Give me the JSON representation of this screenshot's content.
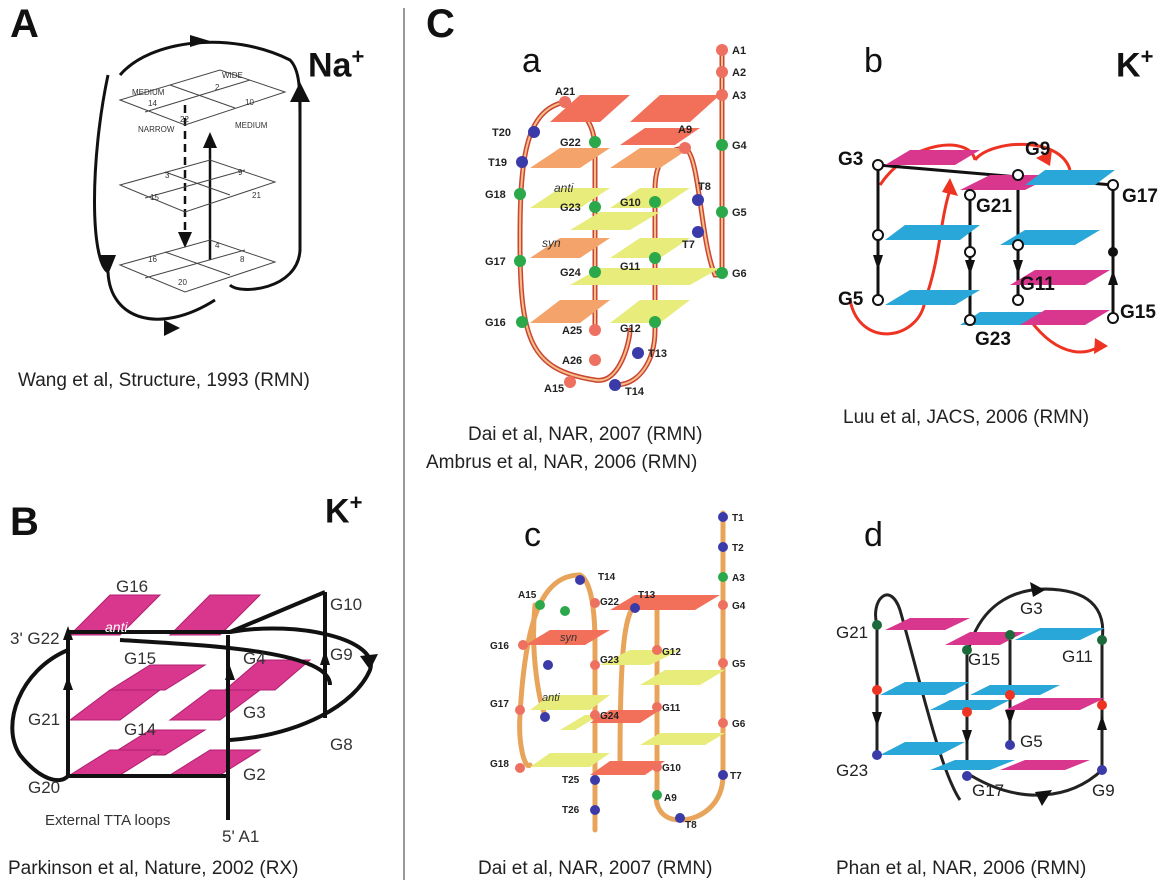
{
  "panels": {
    "A": {
      "letter": "A",
      "ion": "Na",
      "ion_charge": "+",
      "citation": "Wang et al, Structure, 1993 (RMN)",
      "groove_labels": [
        "WIDE",
        "MEDIUM",
        "NARROW",
        "MEDIUM"
      ],
      "residue_labels": [
        "2",
        "14",
        "10",
        "22",
        "9",
        "3",
        "15",
        "21",
        "4",
        "16",
        "8",
        "20"
      ]
    },
    "B": {
      "letter": "B",
      "ion": "K",
      "ion_charge": "+",
      "citation": "Parkinson et al, Nature, 2002 (RX)",
      "labels": [
        "G16",
        "G10",
        "3' G22",
        "G15",
        "G4",
        "G9",
        "G21",
        "G14",
        "G3",
        "G8",
        "G20",
        "G2",
        "5' A1"
      ],
      "anti_label": "anti",
      "loops_caption": "External TTA loops"
    },
    "C": {
      "letter": "C",
      "a": {
        "letter": "a",
        "labels": [
          "A1",
          "A2",
          "A3",
          "A21",
          "T20",
          "G22",
          "A9",
          "G4",
          "T19",
          "G18",
          "G23",
          "G10",
          "T8",
          "G5",
          "T7",
          "G17",
          "G24",
          "G11",
          "G6",
          "G16",
          "A25",
          "G12",
          "T13",
          "A26",
          "A15",
          "T14"
        ],
        "anti_label": "anti",
        "syn_label": "syn",
        "citation_1": "Dai et al, NAR, 2007 (RMN)",
        "citation_2": "Ambrus et al, NAR, 2006 (RMN)"
      },
      "b": {
        "letter": "b",
        "ion": "K",
        "ion_charge": "+",
        "labels": [
          "G3",
          "G9",
          "G21",
          "G17",
          "G5",
          "G11",
          "G15",
          "G23"
        ],
        "citation": "Luu et al, JACS, 2006 (RMN)"
      },
      "c": {
        "letter": "c",
        "labels": [
          "T1",
          "T2",
          "A3",
          "T14",
          "A15",
          "T13",
          "G22",
          "G4",
          "G16",
          "G23",
          "G12",
          "G5",
          "G17",
          "G11",
          "G24",
          "G6",
          "G18",
          "G10",
          "T25",
          "T7",
          "T26",
          "A9",
          "T8"
        ],
        "anti_label": "anti",
        "syn_label": "syn",
        "citation": "Dai et al, NAR, 2007 (RMN)"
      },
      "d": {
        "letter": "d",
        "labels": [
          "G3",
          "G21",
          "G15",
          "G11",
          "G5",
          "G23",
          "G17",
          "G9"
        ],
        "citation": "Phan et al, NAR, 2006 (RMN)"
      }
    }
  },
  "colors": {
    "magenta": "#d9368e",
    "cyan": "#29a7d8",
    "salmon": "#f2705a",
    "orange": "#f4a36a",
    "yellow": "#e8ec7a",
    "backbone": "#e8a45a",
    "node_green": "#2aa84a",
    "node_blue": "#3a3aa8",
    "node_red": "#ee7060",
    "loop_red": "#ee3322"
  }
}
